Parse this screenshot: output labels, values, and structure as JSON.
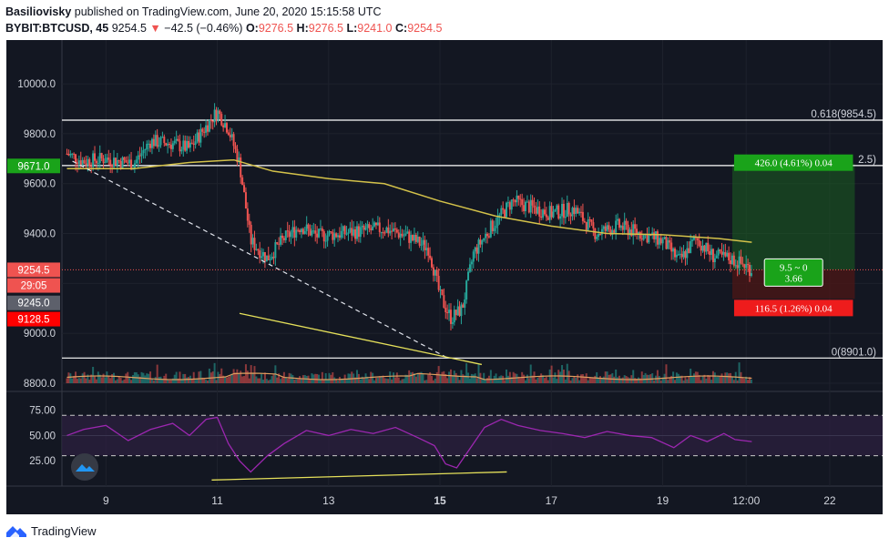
{
  "header": {
    "author": "Basiliovisky",
    "published": "published on TradingView.com, June 20, 2020 15:15:58 UTC",
    "symbol": "BYBIT:BTCUSD, 45",
    "last": "9254.5",
    "change": "−42.5 (−0.46%)",
    "o_label": "O:",
    "o": "9276.5",
    "h_label": "H:",
    "h": "9276.5",
    "l_label": "L:",
    "l": "9241.0",
    "c_label": "C:",
    "c": "9254.5"
  },
  "footer": {
    "brand": "TradingView"
  },
  "colors": {
    "background": "#131722",
    "up": "#26a69a",
    "down": "#ef5350",
    "ma": "#d4c24a",
    "rsi": "#9c27b0",
    "level_line": "#ffffff",
    "target_box": "#1b5e20",
    "stop_box": "#4a1616"
  },
  "chart_data": [
    {
      "type": "candlestick",
      "title": "",
      "ylim": [
        8800,
        10150
      ],
      "y_ticks": [
        "10000.0",
        "9800.0",
        "9600.0",
        "9400.0",
        "9200.0",
        "9000.0",
        "8800.0"
      ],
      "x_ticks": [
        "9",
        "11",
        "13",
        "15",
        "17",
        "19",
        "12:00",
        "22"
      ],
      "x_tick_bold": [
        "15"
      ],
      "price_path": [
        {
          "x": 8.3,
          "y": 9720
        },
        {
          "x": 8.6,
          "y": 9690
        },
        {
          "x": 9.0,
          "y": 9700
        },
        {
          "x": 9.5,
          "y": 9680
        },
        {
          "x": 9.8,
          "y": 9770
        },
        {
          "x": 10.2,
          "y": 9760
        },
        {
          "x": 10.5,
          "y": 9740
        },
        {
          "x": 10.8,
          "y": 9830
        },
        {
          "x": 11.0,
          "y": 9890
        },
        {
          "x": 11.2,
          "y": 9820
        },
        {
          "x": 11.4,
          "y": 9680
        },
        {
          "x": 11.6,
          "y": 9370
        },
        {
          "x": 11.9,
          "y": 9300
        },
        {
          "x": 12.2,
          "y": 9380
        },
        {
          "x": 12.5,
          "y": 9430
        },
        {
          "x": 12.8,
          "y": 9390
        },
        {
          "x": 13.2,
          "y": 9400
        },
        {
          "x": 13.6,
          "y": 9410
        },
        {
          "x": 14.0,
          "y": 9420
        },
        {
          "x": 14.4,
          "y": 9390
        },
        {
          "x": 14.8,
          "y": 9340
        },
        {
          "x": 15.0,
          "y": 9150
        },
        {
          "x": 15.2,
          "y": 9060
        },
        {
          "x": 15.4,
          "y": 9100
        },
        {
          "x": 15.6,
          "y": 9320
        },
        {
          "x": 15.9,
          "y": 9420
        },
        {
          "x": 16.3,
          "y": 9530
        },
        {
          "x": 16.7,
          "y": 9500
        },
        {
          "x": 17.0,
          "y": 9480
        },
        {
          "x": 17.4,
          "y": 9500
        },
        {
          "x": 17.8,
          "y": 9400
        },
        {
          "x": 18.2,
          "y": 9430
        },
        {
          "x": 18.6,
          "y": 9400
        },
        {
          "x": 19.0,
          "y": 9370
        },
        {
          "x": 19.3,
          "y": 9290
        },
        {
          "x": 19.6,
          "y": 9380
        },
        {
          "x": 19.9,
          "y": 9310
        },
        {
          "x": 20.2,
          "y": 9300
        },
        {
          "x": 20.5,
          "y": 9270
        },
        {
          "x": 20.6,
          "y": 9254.5
        }
      ],
      "ma_path": [
        {
          "x": 8.3,
          "y": 9660
        },
        {
          "x": 9.5,
          "y": 9660
        },
        {
          "x": 10.5,
          "y": 9685
        },
        {
          "x": 11.3,
          "y": 9695
        },
        {
          "x": 12.0,
          "y": 9650
        },
        {
          "x": 13.0,
          "y": 9620
        },
        {
          "x": 14.0,
          "y": 9600
        },
        {
          "x": 15.0,
          "y": 9530
        },
        {
          "x": 16.0,
          "y": 9470
        },
        {
          "x": 17.0,
          "y": 9430
        },
        {
          "x": 18.0,
          "y": 9400
        },
        {
          "x": 19.0,
          "y": 9395
        },
        {
          "x": 20.0,
          "y": 9380
        },
        {
          "x": 20.6,
          "y": 9365
        }
      ],
      "fib_levels": [
        {
          "label": "0.618(9854.5)",
          "price": 9854.5
        },
        {
          "label": "2.5)",
          "price": 9672.5
        },
        {
          "label": "0(8901.0)",
          "price": 8901.0
        }
      ],
      "price_labels": [
        {
          "text": "9671.0",
          "price": 9671.0,
          "color": "#1aa31a"
        },
        {
          "text": "9254.5",
          "price": 9254.5,
          "color": "#ef5350"
        },
        {
          "text": "29:05",
          "price": 9192.0,
          "color": "#ef5350"
        },
        {
          "text": "9245.0",
          "price": 9122.0,
          "color": "#5d606b"
        },
        {
          "text": "9128.5",
          "price": 9057.0,
          "color": "#ff0000"
        }
      ],
      "trendline": {
        "x1": 8.4,
        "y1": 9690,
        "x2": 15.15,
        "y2": 8900
      },
      "support_line": {
        "x1": 11.4,
        "y1": 9080,
        "x2": 15.75,
        "y2": 8875
      },
      "position": {
        "entry": 9254.5,
        "target": 9680.5,
        "stop": 9138.0,
        "x1": 20.25,
        "x2": 22.45,
        "target_label": "426.0 (4.61%) 0.04",
        "stop_label": "116.5 (1.26%) 0.04",
        "ratio_label_1": "9.5 ~ 0",
        "ratio_label_2": "3.66"
      }
    },
    {
      "type": "line",
      "title": "",
      "ylim": [
        0,
        90
      ],
      "y_ticks": [
        "75.00",
        "50.00",
        "25.00"
      ],
      "bands": [
        70,
        30
      ],
      "rsi_path": [
        {
          "x": 8.3,
          "y": 50
        },
        {
          "x": 8.6,
          "y": 56
        },
        {
          "x": 9.0,
          "y": 60
        },
        {
          "x": 9.4,
          "y": 45
        },
        {
          "x": 9.8,
          "y": 56
        },
        {
          "x": 10.2,
          "y": 62
        },
        {
          "x": 10.5,
          "y": 50
        },
        {
          "x": 10.8,
          "y": 66
        },
        {
          "x": 11.0,
          "y": 68
        },
        {
          "x": 11.2,
          "y": 42
        },
        {
          "x": 11.4,
          "y": 25
        },
        {
          "x": 11.6,
          "y": 14
        },
        {
          "x": 11.9,
          "y": 30
        },
        {
          "x": 12.2,
          "y": 42
        },
        {
          "x": 12.6,
          "y": 55
        },
        {
          "x": 13.0,
          "y": 50
        },
        {
          "x": 13.4,
          "y": 56
        },
        {
          "x": 13.8,
          "y": 52
        },
        {
          "x": 14.2,
          "y": 58
        },
        {
          "x": 14.6,
          "y": 48
        },
        {
          "x": 14.9,
          "y": 40
        },
        {
          "x": 15.1,
          "y": 22
        },
        {
          "x": 15.3,
          "y": 18
        },
        {
          "x": 15.5,
          "y": 34
        },
        {
          "x": 15.8,
          "y": 58
        },
        {
          "x": 16.1,
          "y": 66
        },
        {
          "x": 16.4,
          "y": 60
        },
        {
          "x": 16.8,
          "y": 55
        },
        {
          "x": 17.2,
          "y": 52
        },
        {
          "x": 17.6,
          "y": 48
        },
        {
          "x": 18.0,
          "y": 54
        },
        {
          "x": 18.4,
          "y": 50
        },
        {
          "x": 18.8,
          "y": 48
        },
        {
          "x": 19.2,
          "y": 38
        },
        {
          "x": 19.5,
          "y": 50
        },
        {
          "x": 19.8,
          "y": 44
        },
        {
          "x": 20.1,
          "y": 52
        },
        {
          "x": 20.3,
          "y": 46
        },
        {
          "x": 20.6,
          "y": 44
        }
      ],
      "divergence_line": {
        "x1": 10.9,
        "y1": 6,
        "x2": 16.2,
        "y2": 14
      }
    }
  ]
}
